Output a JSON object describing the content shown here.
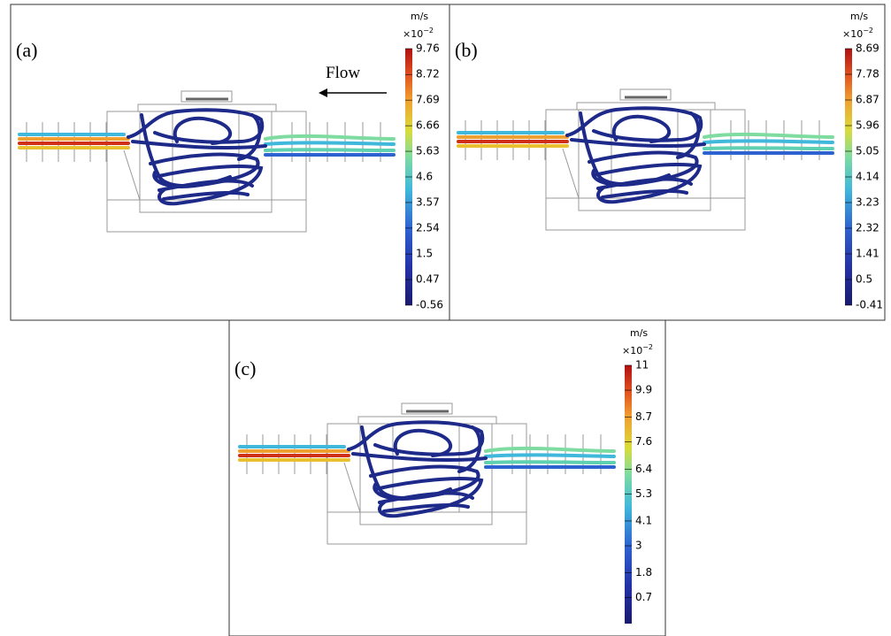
{
  "panels": [
    {
      "label": "(a)",
      "annotation": "Flow",
      "colorbar": {
        "unit": "m/s",
        "multiplier": "×10",
        "exponent": "−2",
        "lim": [
          -0.56,
          9.76
        ],
        "ticks": [
          9.76,
          8.72,
          7.69,
          6.66,
          5.63,
          4.6,
          3.57,
          2.54,
          1.5,
          0.47,
          -0.56
        ]
      }
    },
    {
      "label": "(b)",
      "colorbar": {
        "unit": "m/s",
        "multiplier": "×10",
        "exponent": "−2",
        "lim": [
          -0.41,
          8.69
        ],
        "ticks": [
          8.69,
          7.78,
          6.87,
          5.96,
          5.05,
          4.14,
          3.23,
          2.32,
          1.41,
          0.5,
          -0.41
        ]
      }
    },
    {
      "label": "(c)",
      "colorbar": {
        "unit": "m/s",
        "multiplier": "×10",
        "exponent": "−2",
        "lim": [
          -0.45,
          11
        ],
        "ticks": [
          11,
          9.9,
          8.7,
          7.6,
          6.4,
          5.3,
          4.1,
          3,
          1.8,
          0.7
        ]
      }
    }
  ]
}
